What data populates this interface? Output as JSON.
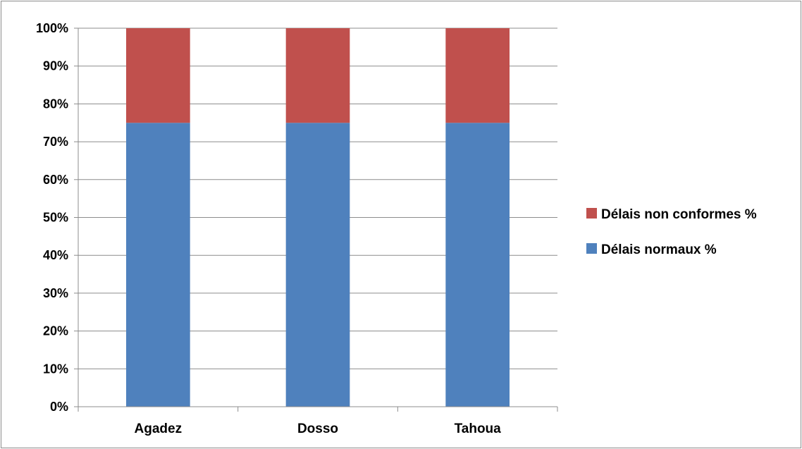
{
  "chart_data": {
    "type": "bar",
    "stacked": true,
    "categories": [
      "Agadez",
      "Dosso",
      "Tahoua"
    ],
    "series": [
      {
        "name": "Délais normaux %",
        "values": [
          75,
          75,
          75
        ],
        "color": "#4F81BD"
      },
      {
        "name": "Délais non conformes %",
        "values": [
          25,
          25,
          25
        ],
        "color": "#C0504D"
      }
    ],
    "y_ticks": [
      "0%",
      "10%",
      "20%",
      "30%",
      "40%",
      "50%",
      "60%",
      "70%",
      "80%",
      "90%",
      "100%"
    ],
    "ylim": [
      0,
      100
    ],
    "grid": true,
    "legend_position": "right",
    "legend_entries": [
      "Délais non conformes %",
      "Délais normaux %"
    ]
  }
}
